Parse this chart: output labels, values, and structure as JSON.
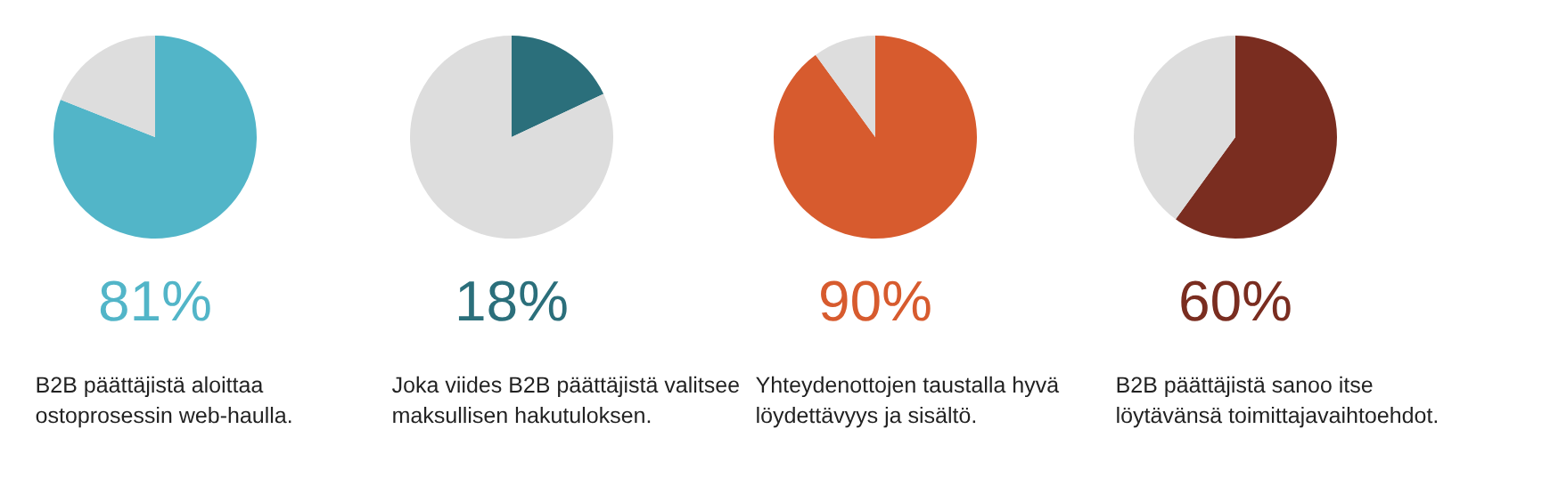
{
  "chart_data": [
    {
      "type": "pie",
      "categories": [
        null,
        null
      ],
      "values": [
        81,
        19
      ],
      "colors": [
        "#52b5c8",
        "#dddddd"
      ],
      "annotations": [
        "81%",
        "B2B päättäjistä aloittaa\nostoprosessin web-haulla."
      ]
    },
    {
      "type": "pie",
      "categories": [
        null,
        null
      ],
      "values": [
        18,
        82
      ],
      "colors": [
        "#2b6f7b",
        "#dddddd"
      ],
      "annotations": [
        "18%",
        "Joka viides B2B päättäjistä valitsee\nmaksullisen hakutuloksen."
      ]
    },
    {
      "type": "pie",
      "categories": [
        null,
        null
      ],
      "values": [
        90,
        10
      ],
      "colors": [
        "#d75b2e",
        "#dddddd"
      ],
      "annotations": [
        "90%",
        "Yhteydenottojen taustalla hyvä\nlöydettävyys ja sisältö."
      ]
    },
    {
      "type": "pie",
      "categories": [
        null,
        null
      ],
      "values": [
        60,
        40
      ],
      "colors": [
        "#7a2d20",
        "#dddddd"
      ],
      "annotations": [
        "60%",
        "B2B päättäjistä sanoo itse\nlöytävänsä toimittajavaihtoehdot."
      ]
    }
  ]
}
